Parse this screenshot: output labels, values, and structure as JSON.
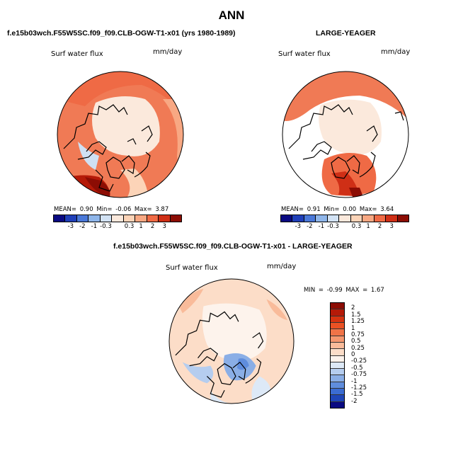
{
  "figure_title": "ANN",
  "panels": [
    {
      "title": "f.e15b03wch.F55W5SC.f09_f09.CLB-OGW-T1-x01 (yrs 1980-1989)",
      "variable": "Surf water flux",
      "units": "mm/day",
      "stats": {
        "mean": "0.90",
        "min": "-0.06",
        "max": "3.87"
      },
      "stats_text": "MEAN=   0.90  Min=   -0.06  Max=    3.87"
    },
    {
      "title": "LARGE-YEAGER",
      "variable": "Surf water flux",
      "units": "mm/day",
      "stats": {
        "mean": "0.91",
        "min": "0.00",
        "max": "3.64"
      },
      "stats_text": "MEAN=   0.91  Min=    0.00  Max=    3.64"
    },
    {
      "title": "f.e15b03wch.F55W5SC.f09_f09.CLB-OGW-T1-x01 - LARGE-YEAGER",
      "variable": "Surf water flux",
      "units": "mm/day",
      "stats": {
        "min": "-0.99",
        "max": "1.67"
      },
      "stats_text": "MIN =  -0.99  MAX =   1.67"
    }
  ],
  "colorbar_main": {
    "tick_labels": [
      "-3",
      "-2",
      "-1",
      "-0.3",
      "0.3",
      "1",
      "2",
      "3"
    ],
    "colors": [
      "#0a0a82",
      "#1f3fb8",
      "#4a78d8",
      "#8fb6ea",
      "#d2e2f4",
      "#fbe9dc",
      "#fcd4b8",
      "#f8a883",
      "#ef6a45",
      "#cf2f16",
      "#8c0d04"
    ]
  },
  "colorbar_diff": {
    "tick_labels": [
      "2",
      "1.5",
      "1.25",
      "1",
      "0.75",
      "0.5",
      "0.25",
      "0",
      "-0.25",
      "-0.5",
      "-0.75",
      "-1",
      "-1.25",
      "-1.5",
      "-2"
    ],
    "colors": [
      "#8c0d04",
      "#b51a08",
      "#d63310",
      "#ea5124",
      "#f07347",
      "#f5976f",
      "#f9bb9a",
      "#fcddc8",
      "#fdf3ec",
      "#dde9f7",
      "#b5cdef",
      "#8aaee6",
      "#5f8ddd",
      "#3b6cd2",
      "#1f46b8",
      "#0a0a82"
    ]
  },
  "colors": {
    "ocean_bg": "#fde5d5",
    "arctic_low": "#fbeee4",
    "high_flux": "#e8583a",
    "very_high_flux": "#b51a08",
    "negative": "#cfe0f4",
    "land": "#ffffff"
  }
}
